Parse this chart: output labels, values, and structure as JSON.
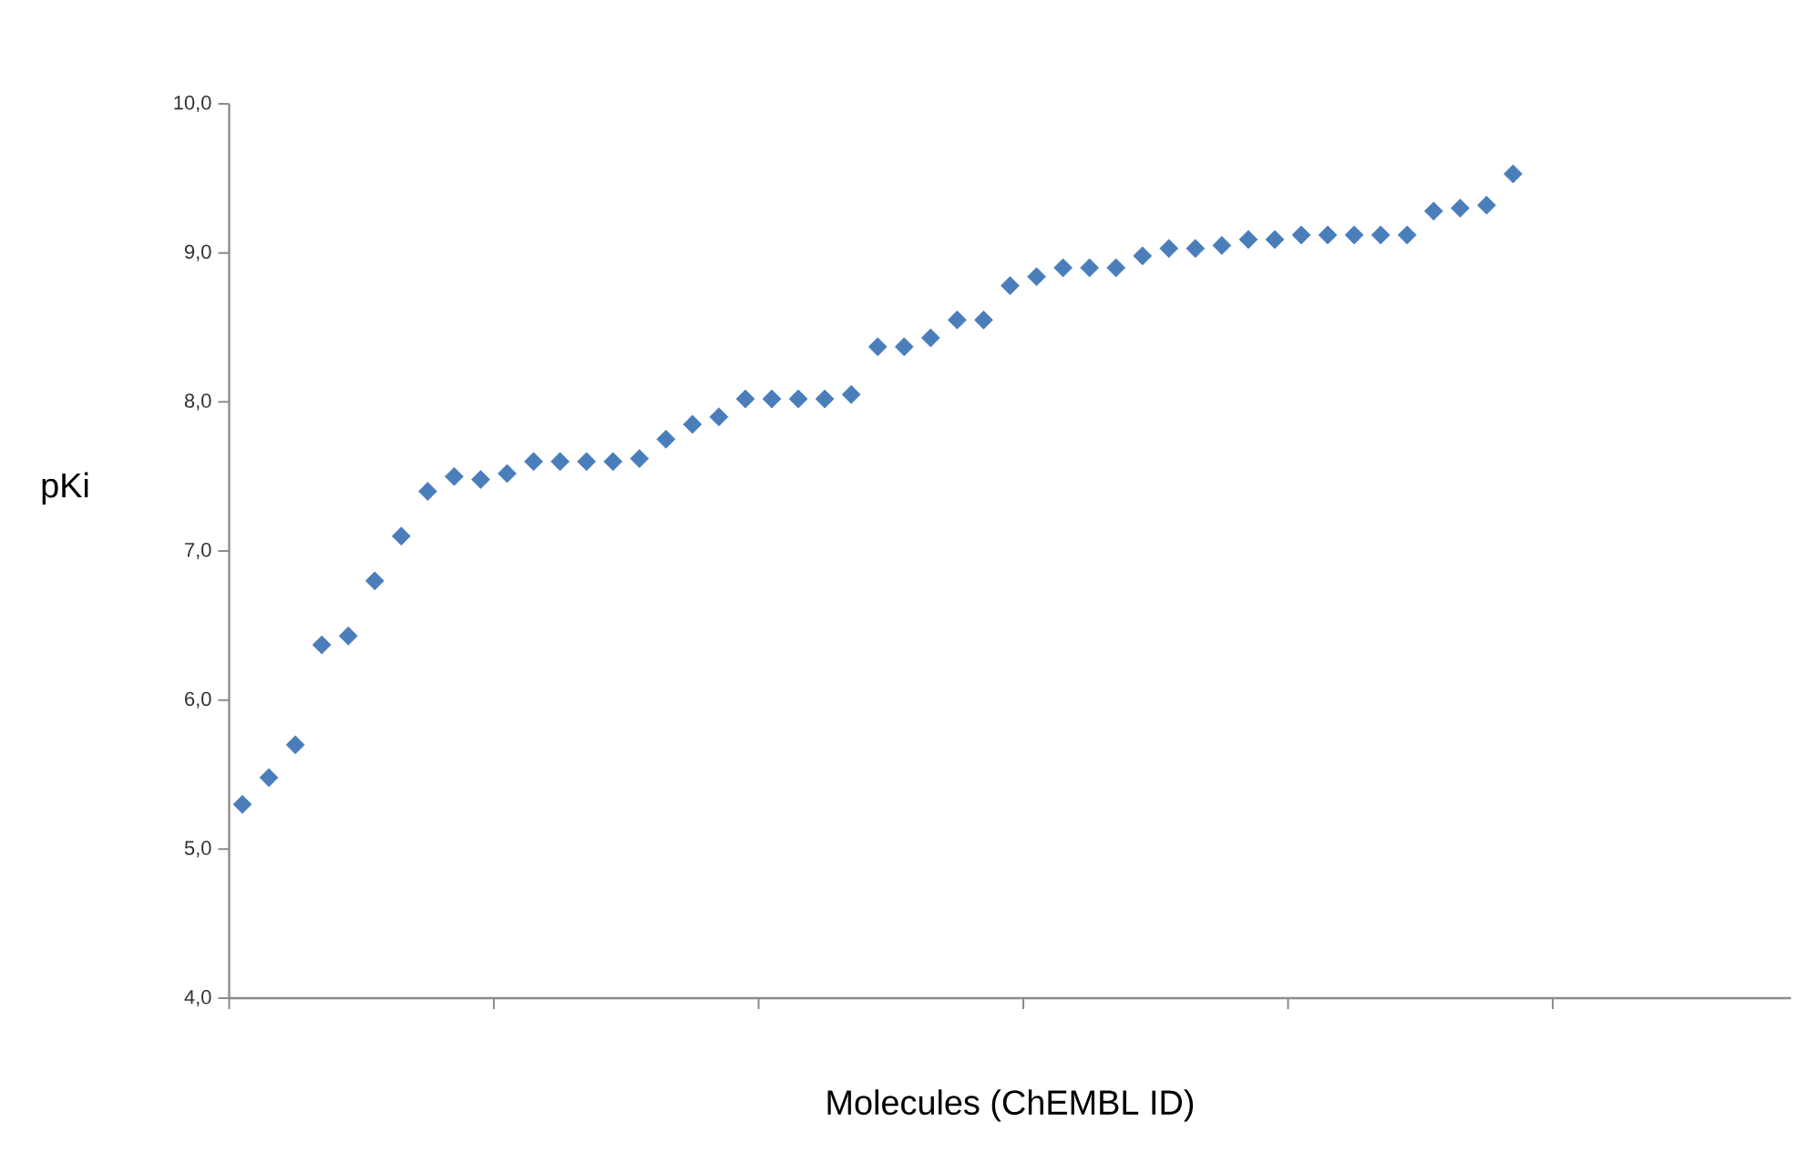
{
  "chart_data": {
    "type": "scatter",
    "xlabel": "Molecules (ChEMBL ID)",
    "ylabel": "pKi",
    "categories": [
      null,
      null,
      null,
      null,
      null,
      null,
      null,
      null,
      null,
      null,
      null,
      null,
      null,
      null,
      null,
      null,
      null,
      null,
      null,
      null,
      null,
      null,
      null,
      null,
      null,
      null,
      null,
      null,
      null,
      null,
      null,
      null,
      null,
      null,
      null,
      null,
      null,
      null,
      null,
      null,
      null,
      null,
      null,
      null,
      null,
      null,
      null,
      null,
      null,
      null,
      null,
      null,
      null,
      null,
      null,
      null,
      null,
      null,
      null
    ],
    "values": [
      5.3,
      5.48,
      5.7,
      6.37,
      6.43,
      6.8,
      7.1,
      7.4,
      7.5,
      7.48,
      7.52,
      7.6,
      7.6,
      7.6,
      7.6,
      7.62,
      7.75,
      7.85,
      7.9,
      8.02,
      8.02,
      8.02,
      8.02,
      8.05,
      8.37,
      8.37,
      8.43,
      8.55,
      8.55,
      8.78,
      8.84,
      8.9,
      8.9,
      8.9,
      8.98,
      9.03,
      9.03,
      9.05,
      9.09,
      9.09,
      9.12,
      9.12,
      9.12,
      9.12,
      9.12,
      9.28,
      9.3,
      9.32,
      9.53,
      null,
      null,
      null,
      null,
      null,
      null,
      null,
      null,
      null,
      null
    ],
    "color": "#4a7ebb",
    "marker": "diamond",
    "ylim": [
      4,
      10
    ],
    "yticks": [
      {
        "value": 4,
        "label": "4,0"
      },
      {
        "value": 5,
        "label": "5,0"
      },
      {
        "value": 6,
        "label": "6,0"
      },
      {
        "value": 7,
        "label": "7,0"
      },
      {
        "value": 8,
        "label": "8,0"
      },
      {
        "value": 9,
        "label": "9,0"
      },
      {
        "value": 10,
        "label": "10,0"
      }
    ],
    "tick_labels": "y"
  }
}
